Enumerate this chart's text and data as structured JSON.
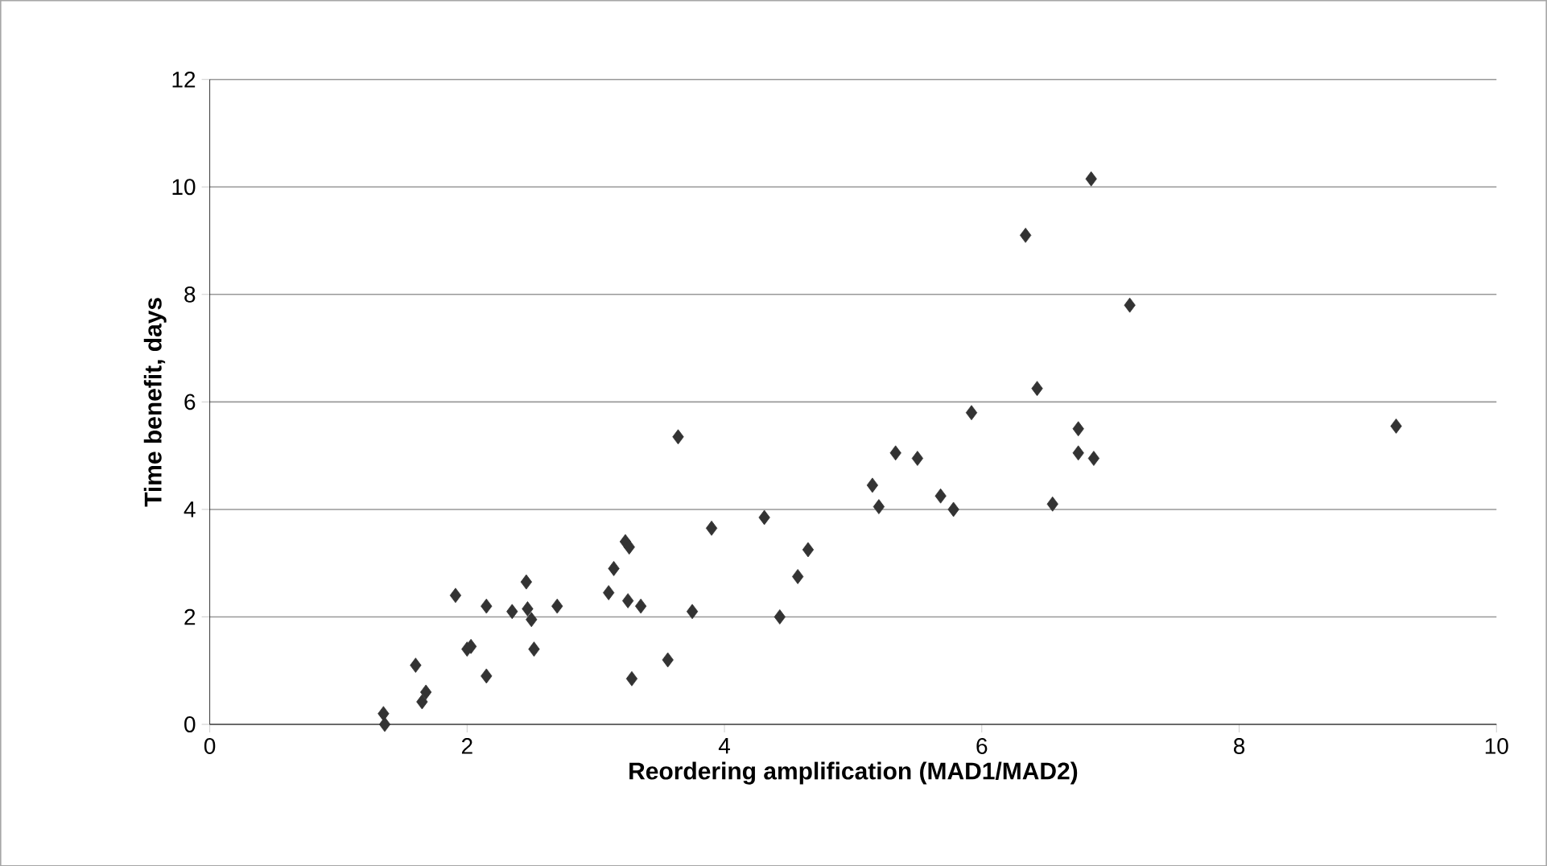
{
  "chart_data": {
    "type": "scatter",
    "xlabel": "Reordering amplification (MAD1/MAD2)",
    "ylabel": "Time benefit, days",
    "x": [
      1.35,
      1.36,
      1.6,
      1.65,
      1.68,
      1.91,
      2.0,
      2.03,
      2.15,
      2.15,
      2.35,
      2.46,
      2.47,
      2.5,
      2.52,
      2.7,
      3.1,
      3.14,
      3.23,
      3.26,
      3.25,
      3.28,
      3.35,
      3.56,
      3.64,
      3.75,
      3.9,
      4.31,
      4.43,
      4.57,
      4.65,
      5.15,
      5.2,
      5.33,
      5.5,
      5.68,
      5.78,
      5.92,
      6.34,
      6.43,
      6.55,
      6.75,
      6.75,
      6.87,
      6.85,
      7.15,
      9.22
    ],
    "values": [
      0.2,
      0.0,
      1.1,
      0.42,
      0.6,
      2.4,
      1.4,
      1.45,
      0.9,
      2.2,
      2.1,
      2.65,
      2.15,
      1.95,
      1.4,
      2.2,
      2.45,
      2.9,
      3.4,
      3.3,
      2.3,
      0.85,
      2.2,
      1.2,
      5.35,
      2.1,
      3.65,
      3.85,
      2.0,
      2.75,
      3.25,
      4.45,
      4.05,
      5.05,
      4.95,
      4.25,
      4.0,
      5.8,
      9.1,
      6.25,
      4.1,
      5.5,
      5.05,
      4.95,
      10.15,
      7.8,
      5.55
    ],
    "color": "#333333",
    "marker": "diamond",
    "grid": "y",
    "xlim": [
      0,
      10
    ],
    "ylim": [
      0,
      12
    ],
    "xticks": [
      0,
      2,
      4,
      6,
      8,
      10
    ],
    "yticks": [
      0,
      2,
      4,
      6,
      8,
      10,
      12
    ]
  }
}
